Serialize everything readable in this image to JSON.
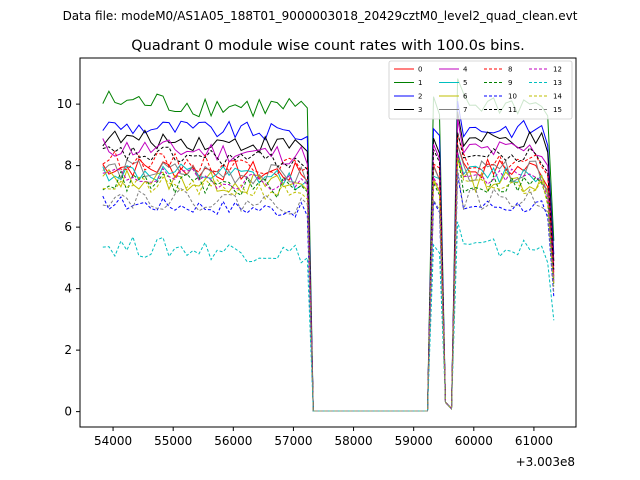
{
  "supertitle": "Data file: modeM0/AS1A05_188T01_9000003018_20429cztM0_level2_quad_clean.evt",
  "chart_data": {
    "type": "line",
    "title": "Quadrant 0 module wise count rates with 100.0s bins.",
    "xlabel": "",
    "ylabel": "",
    "x_offset_label": "+3.003e8",
    "xlim": [
      53450,
      61700
    ],
    "ylim": [
      -0.5,
      11.5
    ],
    "x_ticks": [
      54000,
      55000,
      56000,
      57000,
      58000,
      59000,
      60000,
      61000
    ],
    "x_tick_labels": [
      "54000",
      "55000",
      "56000",
      "57000",
      "58000",
      "59000",
      "60000",
      "61000"
    ],
    "y_ticks": [
      0,
      2,
      4,
      6,
      8,
      10
    ],
    "y_tick_labels": [
      "0",
      "2",
      "4",
      "6",
      "8",
      "10"
    ],
    "x_start": 53830,
    "x_step": 100,
    "gap_start": 57330,
    "gap_end": 59230,
    "flare_peaks_x": [
      59330,
      59730
    ],
    "x_end": 61330,
    "legend_position": "top-right",
    "series": [
      {
        "name": "0",
        "color": "#ff0000",
        "dash": "solid",
        "level": 8.0,
        "amp": 0.35
      },
      {
        "name": "1",
        "color": "#008000",
        "dash": "solid",
        "level": 10.1,
        "amp": 0.4
      },
      {
        "name": "2",
        "color": "#0000ff",
        "dash": "solid",
        "level": 9.3,
        "amp": 0.3
      },
      {
        "name": "3",
        "color": "#000000",
        "dash": "solid",
        "level": 8.9,
        "amp": 0.3
      },
      {
        "name": "4",
        "color": "#bf00bf",
        "dash": "solid",
        "level": 8.6,
        "amp": 0.35
      },
      {
        "name": "5",
        "color": "#00bfbf",
        "dash": "solid",
        "level": 7.8,
        "amp": 0.35
      },
      {
        "name": "6",
        "color": "#bfbf00",
        "dash": "solid",
        "level": 7.6,
        "amp": 0.35
      },
      {
        "name": "7",
        "color": "#808080",
        "dash": "solid",
        "level": 7.9,
        "amp": 0.35
      },
      {
        "name": "8",
        "color": "#ff0000",
        "dash": "dashed",
        "level": 8.2,
        "amp": 0.3
      },
      {
        "name": "9",
        "color": "#008000",
        "dash": "dashed",
        "level": 7.5,
        "amp": 0.35
      },
      {
        "name": "10",
        "color": "#0000ff",
        "dash": "dashed",
        "level": 6.8,
        "amp": 0.25
      },
      {
        "name": "11",
        "color": "#000000",
        "dash": "dashed",
        "level": 8.4,
        "amp": 0.3
      },
      {
        "name": "12",
        "color": "#bf00bf",
        "dash": "dashed",
        "level": 7.7,
        "amp": 0.3
      },
      {
        "name": "13",
        "color": "#00bfbf",
        "dash": "dashed",
        "level": 5.4,
        "amp": 0.35
      },
      {
        "name": "14",
        "color": "#bfbf00",
        "dash": "dashed",
        "level": 7.4,
        "amp": 0.3
      },
      {
        "name": "15",
        "color": "#808080",
        "dash": "dashed",
        "level": 7.0,
        "amp": 0.35
      }
    ]
  }
}
